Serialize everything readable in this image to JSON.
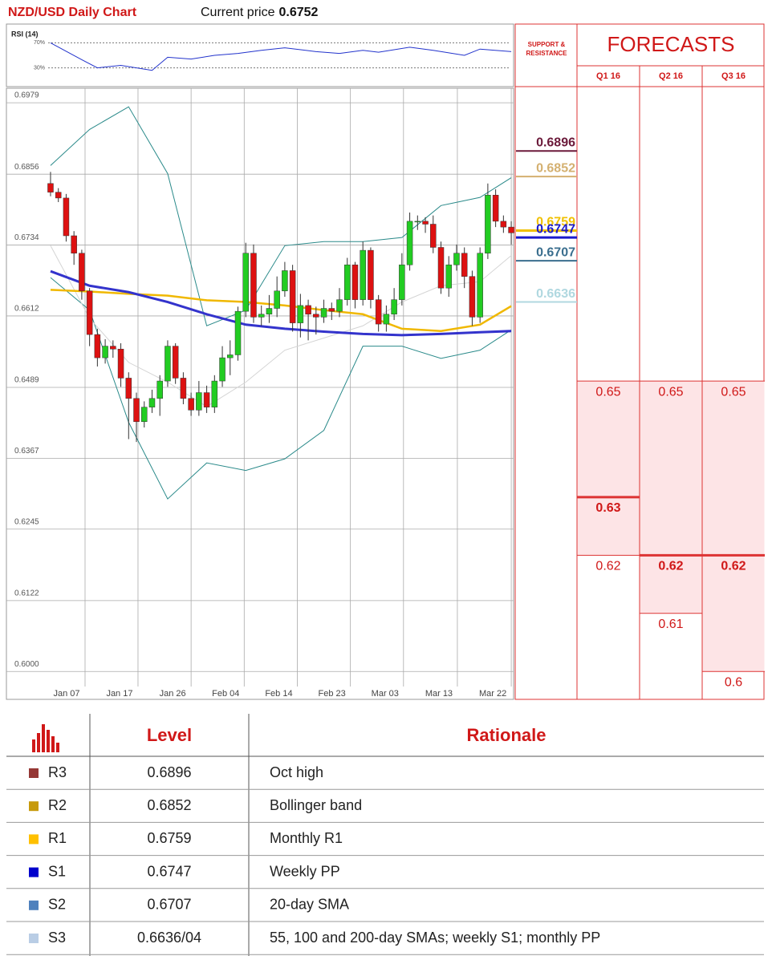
{
  "header": {
    "title": "NZD/USD Daily Chart",
    "price_label": "Current price",
    "price": 0.6752
  },
  "chart_data": [
    {
      "type": "candlestick",
      "open": [
        0.684,
        0.6825,
        0.6815,
        0.675,
        0.672,
        0.6655,
        0.658,
        0.654,
        0.656,
        0.6555,
        0.6505,
        0.647,
        0.643,
        0.6455,
        0.647,
        0.65,
        0.656,
        0.6505,
        0.647,
        0.645,
        0.648,
        0.6455,
        0.65,
        0.654,
        0.6545,
        0.662,
        0.672,
        0.661,
        0.6615,
        0.6625,
        0.6655,
        0.669,
        0.66,
        0.663,
        0.6615,
        0.661,
        0.6625,
        0.662,
        0.664,
        0.67,
        0.664,
        0.6725,
        0.664,
        0.6598,
        0.6615,
        0.664,
        0.67,
        0.6775,
        0.6775,
        0.677,
        0.673,
        0.666,
        0.67,
        0.672,
        0.668,
        0.661,
        0.672,
        0.682,
        0.6775,
        0.6765
      ],
      "high": [
        0.686,
        0.6832,
        0.6822,
        0.6758,
        0.6726,
        0.666,
        0.659,
        0.6572,
        0.657,
        0.6565,
        0.6515,
        0.648,
        0.6465,
        0.6485,
        0.651,
        0.657,
        0.6565,
        0.6515,
        0.648,
        0.65,
        0.6492,
        0.651,
        0.656,
        0.657,
        0.6628,
        0.6738,
        0.6735,
        0.663,
        0.6648,
        0.668,
        0.6705,
        0.67,
        0.665,
        0.664,
        0.6628,
        0.664,
        0.6635,
        0.666,
        0.6712,
        0.6705,
        0.674,
        0.673,
        0.6648,
        0.663,
        0.666,
        0.672,
        0.679,
        0.6785,
        0.6782,
        0.6785,
        0.674,
        0.6715,
        0.6735,
        0.673,
        0.669,
        0.673,
        0.684,
        0.683,
        0.6785,
        0.6775
      ],
      "low": [
        0.6818,
        0.6808,
        0.674,
        0.67,
        0.664,
        0.656,
        0.6525,
        0.653,
        0.654,
        0.649,
        0.64,
        0.6395,
        0.642,
        0.6445,
        0.644,
        0.649,
        0.6495,
        0.646,
        0.644,
        0.644,
        0.6445,
        0.6445,
        0.649,
        0.651,
        0.6535,
        0.661,
        0.66,
        0.6595,
        0.66,
        0.661,
        0.6645,
        0.6585,
        0.6575,
        0.657,
        0.658,
        0.66,
        0.6605,
        0.661,
        0.663,
        0.6625,
        0.663,
        0.6625,
        0.6585,
        0.6585,
        0.6605,
        0.663,
        0.669,
        0.676,
        0.6755,
        0.672,
        0.665,
        0.6645,
        0.669,
        0.666,
        0.6595,
        0.66,
        0.671,
        0.6765,
        0.6755,
        0.6735
      ],
      "close": [
        0.6825,
        0.6815,
        0.675,
        0.672,
        0.6655,
        0.658,
        0.654,
        0.656,
        0.6555,
        0.6505,
        0.647,
        0.643,
        0.6455,
        0.647,
        0.65,
        0.656,
        0.6505,
        0.647,
        0.645,
        0.648,
        0.6455,
        0.65,
        0.654,
        0.6545,
        0.662,
        0.672,
        0.661,
        0.6615,
        0.6625,
        0.6655,
        0.669,
        0.66,
        0.663,
        0.6615,
        0.661,
        0.6625,
        0.662,
        0.664,
        0.67,
        0.664,
        0.6725,
        0.664,
        0.6598,
        0.6615,
        0.664,
        0.67,
        0.6775,
        0.6775,
        0.677,
        0.673,
        0.666,
        0.67,
        0.672,
        0.668,
        0.661,
        0.672,
        0.682,
        0.6775,
        0.6765,
        0.6755
      ],
      "up_color": "#22cc22",
      "down_color": "#dd1111",
      "overlays": [
        {
          "color": "#2a8a8a",
          "width": 1,
          "x": [
            0,
            5,
            10,
            15,
            20,
            25,
            30,
            35,
            40,
            45,
            50,
            55,
            59
          ],
          "values": [
            0.6871,
            0.6933,
            0.6972,
            0.6857,
            0.6595,
            0.6622,
            0.6733,
            0.674,
            0.674,
            0.6747,
            0.6802,
            0.6816,
            0.685
          ]
        },
        {
          "color": "#2a8a8a",
          "width": 1,
          "x": [
            0,
            5,
            10,
            15,
            20,
            25,
            30,
            35,
            40,
            45,
            50,
            55,
            59
          ],
          "values": [
            0.6678,
            0.6622,
            0.6429,
            0.6297,
            0.6359,
            0.6346,
            0.6366,
            0.6415,
            0.656,
            0.656,
            0.6539,
            0.6553,
            0.6588
          ]
        },
        {
          "color": "#d4d4d4",
          "width": 1,
          "x": [
            0,
            5,
            10,
            15,
            20,
            25,
            30,
            35,
            40,
            45,
            50,
            55,
            59
          ],
          "values": [
            0.6733,
            0.6608,
            0.6532,
            0.6498,
            0.6456,
            0.6498,
            0.6553,
            0.6574,
            0.6595,
            0.6636,
            0.6664,
            0.6671,
            0.6716
          ]
        },
        {
          "color": "#f0b800",
          "width": 2.5,
          "x": [
            0,
            5,
            10,
            15,
            20,
            25,
            30,
            35,
            40,
            45,
            50,
            55,
            59
          ],
          "values": [
            0.6657,
            0.6654,
            0.665,
            0.6647,
            0.6639,
            0.6636,
            0.663,
            0.6622,
            0.6615,
            0.659,
            0.6586,
            0.6597,
            0.6629
          ]
        },
        {
          "color": "#3333cc",
          "width": 3,
          "x": [
            0,
            5,
            10,
            15,
            20,
            25,
            30,
            35,
            40,
            45,
            50,
            55,
            59
          ],
          "values": [
            0.6689,
            0.6664,
            0.6653,
            0.6636,
            0.6615,
            0.6597,
            0.659,
            0.6585,
            0.6581,
            0.6579,
            0.6581,
            0.6584,
            0.6586
          ]
        }
      ],
      "xlim": [
        -5.65,
        59.3
      ],
      "xticks": [
        {
          "value": 4.42,
          "label": "Jan 07"
        },
        {
          "value": 11.2,
          "label": "Jan 17"
        },
        {
          "value": 18.0,
          "label": "Jan 26"
        },
        {
          "value": 24.8,
          "label": "Feb 04"
        },
        {
          "value": 31.6,
          "label": "Feb 14"
        },
        {
          "value": 38.4,
          "label": "Feb 23"
        },
        {
          "value": 45.2,
          "label": "Mar 03"
        },
        {
          "value": 52.1,
          "label": "Mar 13"
        },
        {
          "value": 59.0,
          "label": "Mar 22"
        }
      ],
      "ylim": [
        0.5952,
        0.7004
      ],
      "yticks": [
        0.6979,
        0.6856,
        0.6734,
        0.6612,
        0.6489,
        0.6367,
        0.6245,
        0.6122,
        {
          "value": 0.6,
          "label": "0.6000"
        }
      ],
      "grid": true
    },
    {
      "type": "line",
      "title": "RSI (14)",
      "color": "#2233cc",
      "x": [
        0,
        4,
        6,
        9,
        13,
        15,
        18,
        21,
        24,
        27,
        30,
        34,
        37,
        40,
        42,
        46,
        49,
        53,
        55,
        59
      ],
      "values": [
        70,
        43,
        30,
        34,
        26,
        47,
        44,
        50,
        53,
        58,
        62,
        56,
        53,
        58,
        55,
        63,
        58,
        50,
        60,
        56
      ],
      "xlim": [
        -5.65,
        59.3
      ],
      "ylim": [
        0,
        100
      ],
      "yticks": [
        {
          "value": 70,
          "label": "70%"
        },
        {
          "value": 30,
          "label": "30%"
        }
      ]
    }
  ],
  "support_resistance": {
    "title": "SUPPORT & RESISTANCE",
    "levels": [
      {
        "value": 0.6896,
        "color": "#6b1a3a",
        "width": 2
      },
      {
        "value": 0.6852,
        "color": "#d4b070",
        "width": 2
      },
      {
        "value": 0.6759,
        "color": "#f0c000",
        "width": 3
      },
      {
        "value": 0.6747,
        "color": "#1a1acc",
        "width": 3
      },
      {
        "value": 0.6707,
        "color": "#3a6e8e",
        "width": 2
      },
      {
        "value": 0.6636,
        "color": "#b0d8e0",
        "width": 2
      }
    ]
  },
  "forecasts": {
    "title": "FORECASTS",
    "highlight": 1,
    "quarters": [
      {
        "label": "Q1 16",
        "values": [
          0.65,
          0.63,
          0.62
        ]
      },
      {
        "label": "Q2 16",
        "values": [
          0.65,
          0.62,
          0.61
        ]
      },
      {
        "label": "Q3 16",
        "values": [
          0.65,
          0.62,
          0.6
        ]
      }
    ]
  },
  "table": {
    "columns": [
      "Level",
      "Rationale"
    ],
    "rows": [
      {
        "name": "R3",
        "color": "#953735",
        "level": "0.6896",
        "rationale": "Oct high"
      },
      {
        "name": "R2",
        "color": "#c79a0b",
        "level": "0.6852",
        "rationale": "Bollinger band"
      },
      {
        "name": "R1",
        "color": "#ffc000",
        "level": "0.6759",
        "rationale": "Monthly R1"
      },
      {
        "name": "S1",
        "color": "#0000cc",
        "level": "0.6747",
        "rationale": "Weekly PP"
      },
      {
        "name": "S2",
        "color": "#4f81bd",
        "level": "0.6707",
        "rationale": "20-day SMA"
      },
      {
        "name": "S3",
        "color": "#b9cde5",
        "level": "0.6636/04",
        "rationale": "55, 100 and 200-day SMAs; weekly S1; monthly PP"
      }
    ]
  }
}
